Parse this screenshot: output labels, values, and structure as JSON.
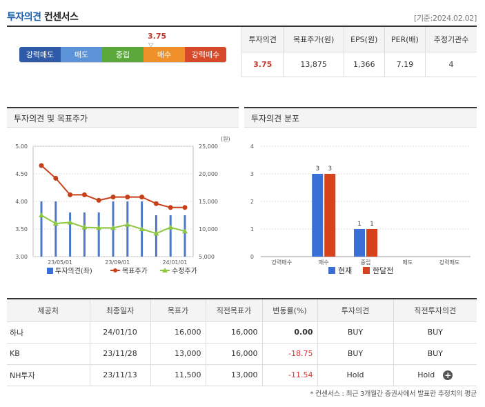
{
  "header": {
    "title": "투자의견",
    "subtitle": "컨센서스",
    "base_date": "[기준:2024.02.02]"
  },
  "opinion_scale": {
    "labels": [
      "강력매도",
      "매도",
      "중립",
      "매수",
      "강력매수"
    ],
    "colors": [
      "#2e5aa8",
      "#5c93d8",
      "#5aa83a",
      "#f0902a",
      "#d64a2a"
    ],
    "current_value": "3.75"
  },
  "consensus": {
    "headers": [
      "투자의견",
      "목표주가(원)",
      "EPS(원)",
      "PER(배)",
      "추정기관수"
    ],
    "values": [
      "3.75",
      "13,875",
      "1,366",
      "7.19",
      "4"
    ]
  },
  "panels": {
    "left_title": "투자의견 및 목표주가",
    "right_title": "투자의견 분포"
  },
  "chart_data": [
    {
      "type": "line",
      "title": "투자의견 및 목표주가",
      "y_left": {
        "ticks": [
          "5.00",
          "4.50",
          "4.00",
          "3.50",
          "3.00"
        ],
        "range": [
          3.0,
          5.0
        ]
      },
      "y_right": {
        "unit": "(원)",
        "ticks": [
          "25,000",
          "20,000",
          "15,000",
          "10,000",
          "5,000"
        ],
        "range": [
          5000,
          25000
        ]
      },
      "x_ticks": [
        "23/05/01",
        "23/09/01",
        "24/01/01"
      ],
      "series": [
        {
          "name": "투자의견(좌)",
          "kind": "bar",
          "color": "#4d79c8",
          "values": [
            4.0,
            4.0,
            3.8,
            3.8,
            3.8,
            4.0,
            4.0,
            4.0,
            3.75,
            3.75,
            3.75
          ]
        },
        {
          "name": "목표주가",
          "kind": "line",
          "color": "#c8401a",
          "values": [
            21500,
            19200,
            16200,
            16200,
            15200,
            15800,
            15800,
            15800,
            14600,
            13900,
            13900
          ]
        },
        {
          "name": "수정주가",
          "kind": "line",
          "color": "#8dc63f",
          "values": [
            12500,
            11000,
            11200,
            10300,
            10200,
            10200,
            10800,
            10000,
            9200,
            10300,
            9600
          ]
        }
      ]
    },
    {
      "type": "bar",
      "title": "투자의견 분포",
      "categories": [
        "강력매수",
        "매수",
        "중립",
        "매도",
        "강력매도"
      ],
      "ylim": [
        0,
        4
      ],
      "y_ticks": [
        "4",
        "3",
        "2",
        "1",
        "0"
      ],
      "series": [
        {
          "name": "현재",
          "color": "#3a6fd8",
          "values": [
            0,
            3,
            1,
            0,
            0
          ]
        },
        {
          "name": "한달전",
          "color": "#d6421c",
          "values": [
            0,
            3,
            1,
            0,
            0
          ]
        }
      ]
    }
  ],
  "table": {
    "headers": [
      "제공처",
      "최종일자",
      "목표가",
      "직전목표가",
      "변동률(%)",
      "투자의견",
      "직전투자의견"
    ],
    "rows": [
      [
        "하나",
        "24/01/10",
        "16,000",
        "16,000",
        "0.00",
        "BUY",
        "BUY"
      ],
      [
        "KB",
        "23/11/28",
        "13,000",
        "16,000",
        "-18.75",
        "BUY",
        "BUY"
      ],
      [
        "NH투자",
        "23/11/13",
        "11,500",
        "13,000",
        "-11.54",
        "Hold",
        "Hold"
      ]
    ],
    "more_icon": "plus-icon"
  },
  "footnote": "* 컨센서스 : 최근 3개월간 증권사에서 발표한 추정치의 평균"
}
